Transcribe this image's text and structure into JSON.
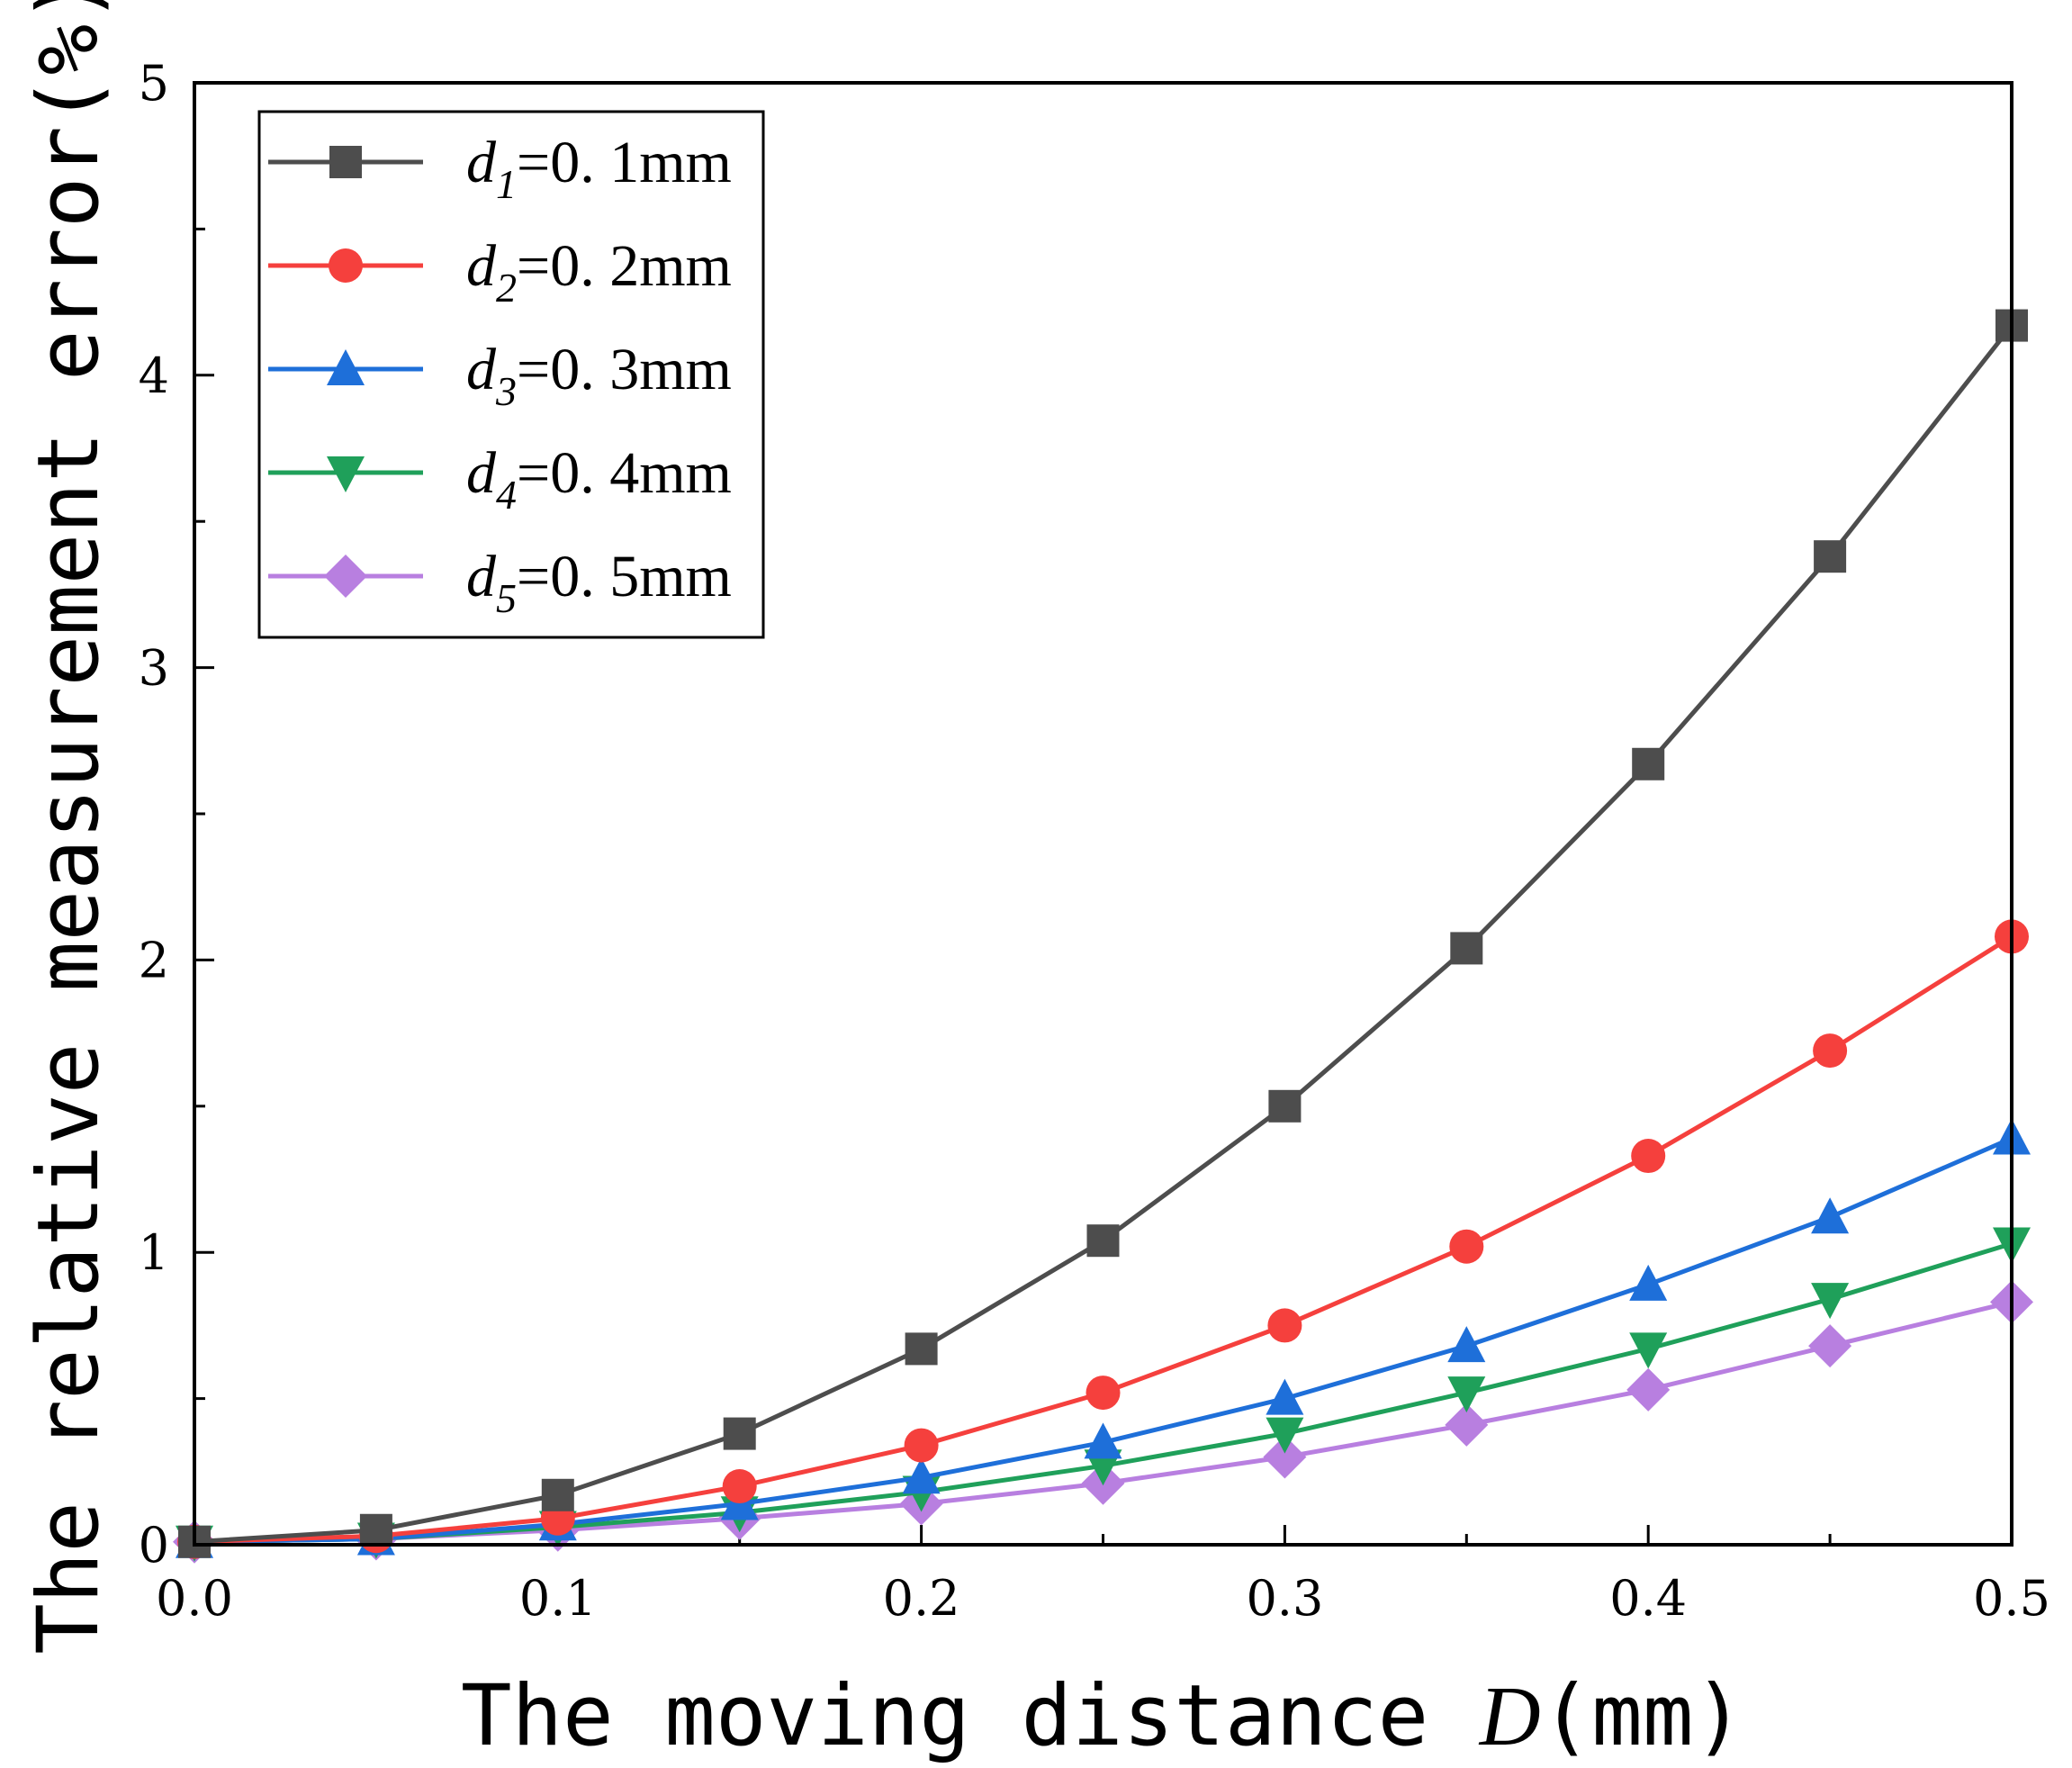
{
  "chart_data": {
    "type": "line",
    "title": "",
    "xlabel": "The moving distance ",
    "xlabel_var": "D",
    "xlabel_unit": "(mm)",
    "ylabel": "The relative measurement error(%)",
    "xlim": [
      0,
      0.5
    ],
    "ylim": [
      0,
      5
    ],
    "xticks": [
      "0.0",
      "0.1",
      "0.2",
      "0.3",
      "0.4",
      "0.5"
    ],
    "xtick_values": [
      0,
      0.1,
      0.2,
      0.3,
      0.4,
      0.5
    ],
    "yticks": [
      "0",
      "1",
      "2",
      "3",
      "4",
      "5"
    ],
    "ytick_values": [
      0,
      1,
      2,
      3,
      4,
      5
    ],
    "legend_position": "top-left",
    "x": [
      0,
      0.05,
      0.1,
      0.15,
      0.2,
      0.25,
      0.3,
      0.35,
      0.4,
      0.45,
      0.5
    ],
    "series": [
      {
        "name": "d1=0.1mm",
        "var": "d",
        "sub": "1",
        "value": "=0. 1mm",
        "color": "#4d4d4d",
        "marker": "square",
        "values": [
          0.01,
          0.05,
          0.17,
          0.38,
          0.67,
          1.04,
          1.5,
          2.04,
          2.67,
          3.38,
          4.17
        ]
      },
      {
        "name": "d2=0.2mm",
        "var": "d",
        "sub": "2",
        "value": "=0. 2mm",
        "color": "#f5403d",
        "marker": "circle",
        "values": [
          0.01,
          0.03,
          0.09,
          0.2,
          0.34,
          0.52,
          0.75,
          1.02,
          1.33,
          1.69,
          2.08
        ]
      },
      {
        "name": "d3=0.3mm",
        "var": "d",
        "sub": "3",
        "value": "=0. 3mm",
        "color": "#1e6fd9",
        "marker": "triangle-up",
        "values": [
          0.01,
          0.02,
          0.07,
          0.14,
          0.23,
          0.35,
          0.5,
          0.68,
          0.89,
          1.12,
          1.39
        ]
      },
      {
        "name": "d4=0.4mm",
        "var": "d",
        "sub": "4",
        "value": "=0. 4mm",
        "color": "#1fa05a",
        "marker": "triangle-down",
        "values": [
          0.01,
          0.02,
          0.06,
          0.11,
          0.18,
          0.27,
          0.38,
          0.52,
          0.67,
          0.84,
          1.03
        ]
      },
      {
        "name": "d5=0.5mm",
        "var": "d",
        "sub": "5",
        "value": "=0. 5mm",
        "color": "#b87fe0",
        "marker": "diamond",
        "values": [
          0.01,
          0.02,
          0.05,
          0.09,
          0.14,
          0.21,
          0.3,
          0.41,
          0.53,
          0.68,
          0.83
        ]
      }
    ]
  }
}
